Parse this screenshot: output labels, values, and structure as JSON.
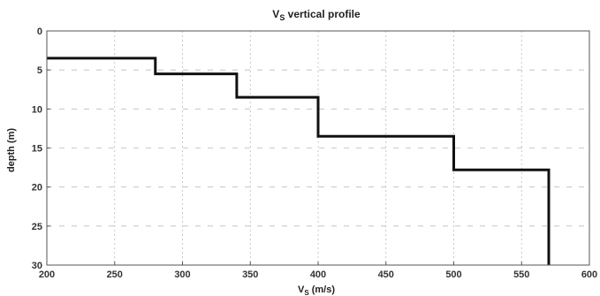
{
  "chart_data": {
    "type": "line",
    "title_main": "V",
    "title_sub": "S",
    "title_rest": " vertical profile",
    "xlabel_main": "V",
    "xlabel_sub": "S",
    "xlabel_rest": " (m/s)",
    "ylabel": "depth (m)",
    "xlim": [
      200,
      600
    ],
    "ylim": [
      0,
      30
    ],
    "y_inverted": true,
    "grid": true,
    "x_ticks": [
      200,
      250,
      300,
      350,
      400,
      450,
      500,
      550,
      600
    ],
    "y_ticks": [
      0,
      5,
      10,
      15,
      20,
      25,
      30
    ],
    "series": [
      {
        "color": "#111111",
        "x": [
          200,
          280,
          280,
          340,
          340,
          400,
          400,
          500,
          500,
          570,
          570
        ],
        "y": [
          3.5,
          3.5,
          5.5,
          5.5,
          8.5,
          8.5,
          13.5,
          13.5,
          17.8,
          17.8,
          30
        ]
      }
    ]
  }
}
